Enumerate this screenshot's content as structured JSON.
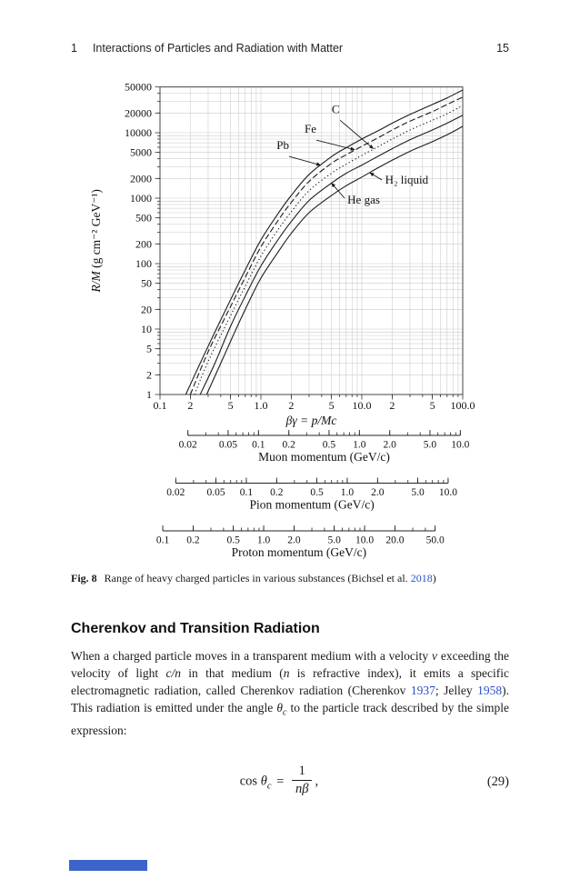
{
  "colors": {
    "link": "#2b50c8",
    "footer_bar": "#3d64c8",
    "grid": "#c9c9c9",
    "curve": "#1c1c1c"
  },
  "header": {
    "chapter": "1",
    "title": "Interactions of Particles and Radiation with Matter",
    "page_number": "15"
  },
  "figure": {
    "caption_label": "Fig. 8",
    "caption_body": "Range of heavy charged particles in various substances (Bichsel et al. ",
    "caption_link": "2018",
    "caption_close": ")"
  },
  "section": {
    "title": "Cherenkov and Transition Radiation"
  },
  "paragraph": {
    "s1": "When a charged particle moves in a transparent medium with a velocity ",
    "s2": "v",
    "s3": " exceeding the velocity of light ",
    "s4": "c/n",
    "s5": " in that medium (",
    "s6": "n",
    "s7": " is refractive index), it emits a specific electromagnetic radiation, called Cherenkov radiation (Cherenkov ",
    "link1937": "1937",
    "s8": "; Jelley ",
    "link1958": "1958",
    "s9": "). This radiation is emitted under the angle ",
    "s10": "θ",
    "s11": "c",
    "s12": " to the particle track described by the simple expression:"
  },
  "equation": {
    "cos": "cos ",
    "theta": "θ",
    "sub": "c",
    "equals": " = ",
    "numerator": "1",
    "denominator": "nβ",
    "comma": ",",
    "label": "(29)"
  },
  "chart_data": {
    "type": "line",
    "title": "",
    "xscale": "log",
    "yscale": "log",
    "xlim": [
      0.1,
      100
    ],
    "ylim": [
      1,
      50000
    ],
    "xlabel": "βγ = p/Mc",
    "ylabel_var": "R/M",
    "ylabel_units": " (g cm⁻² GeV⁻¹)",
    "x_ticks": [
      {
        "v": 0.1,
        "label": "0.1"
      },
      {
        "v": 0.2,
        "label": "2"
      },
      {
        "v": 0.5,
        "label": "5"
      },
      {
        "v": 1,
        "label": "1.0"
      },
      {
        "v": 2,
        "label": "2"
      },
      {
        "v": 5,
        "label": "5"
      },
      {
        "v": 10,
        "label": "10.0"
      },
      {
        "v": 20,
        "label": "2"
      },
      {
        "v": 50,
        "label": "5"
      },
      {
        "v": 100,
        "label": "100.0"
      }
    ],
    "y_ticks": [
      {
        "v": 1,
        "label": "1"
      },
      {
        "v": 2,
        "label": "2"
      },
      {
        "v": 5,
        "label": "5"
      },
      {
        "v": 10,
        "label": "10"
      },
      {
        "v": 20,
        "label": "20"
      },
      {
        "v": 50,
        "label": "50"
      },
      {
        "v": 100,
        "label": "100"
      },
      {
        "v": 200,
        "label": "200"
      },
      {
        "v": 500,
        "label": "500"
      },
      {
        "v": 1000,
        "label": "1000"
      },
      {
        "v": 2000,
        "label": "2000"
      },
      {
        "v": 5000,
        "label": "5000"
      },
      {
        "v": 10000,
        "label": "10000"
      },
      {
        "v": 20000,
        "label": "20000"
      },
      {
        "v": 50000,
        "label": "50000"
      }
    ],
    "series": [
      {
        "name": "Pb",
        "dash": "solid",
        "x": [
          0.18,
          0.25,
          0.35,
          0.5,
          0.7,
          1,
          1.5,
          2,
          3,
          5,
          7,
          10,
          15,
          20,
          30,
          50,
          70,
          100
        ],
        "y": [
          1,
          3,
          9,
          28,
          80,
          230,
          600,
          1100,
          2300,
          4300,
          5900,
          8000,
          11000,
          14000,
          19000,
          27000,
          34000,
          45000
        ]
      },
      {
        "name": "Fe",
        "dash": "dash",
        "x": [
          0.2,
          0.3,
          0.5,
          0.7,
          1,
          1.5,
          2,
          3,
          5,
          7,
          10,
          15,
          20,
          30,
          50,
          70,
          100
        ],
        "y": [
          1,
          4.5,
          22,
          62,
          180,
          470,
          860,
          1800,
          3400,
          4600,
          6200,
          8600,
          11000,
          15000,
          21000,
          27000,
          35000
        ]
      },
      {
        "name": "C",
        "dash": "dot",
        "x": [
          0.22,
          0.3,
          0.5,
          0.7,
          1,
          1.5,
          2,
          3,
          5,
          7,
          10,
          15,
          20,
          30,
          50,
          70,
          100
        ],
        "y": [
          1,
          3.2,
          16,
          45,
          130,
          340,
          620,
          1300,
          2400,
          3300,
          4500,
          6300,
          8000,
          11000,
          15500,
          19500,
          26000
        ]
      },
      {
        "name": "He gas",
        "dash": "solid",
        "x": [
          0.25,
          0.35,
          0.5,
          0.7,
          1,
          1.5,
          2,
          3,
          5,
          7,
          10,
          15,
          20,
          30,
          50,
          70,
          100
        ],
        "y": [
          1,
          3,
          11,
          32,
          92,
          240,
          440,
          920,
          1700,
          2400,
          3200,
          4500,
          5700,
          7800,
          11000,
          14000,
          18500
        ]
      },
      {
        "name": "H₂ liquid",
        "dash": "solid",
        "x": [
          0.29,
          0.4,
          0.55,
          0.75,
          1,
          1.5,
          2,
          3,
          5,
          7,
          10,
          15,
          20,
          30,
          50,
          70,
          100
        ],
        "y": [
          1,
          3,
          9,
          25,
          60,
          155,
          290,
          600,
          1100,
          1550,
          2100,
          3000,
          3800,
          5200,
          7300,
          9300,
          12500
        ]
      }
    ],
    "annotations": [
      {
        "text": "C",
        "anchor": "middle",
        "lx": 5.5,
        "ly": 20000,
        "ax": 6.1,
        "ay": 15500,
        "tx": 13,
        "ty": 5700
      },
      {
        "text": "Fe",
        "anchor": "middle",
        "lx": 3.1,
        "ly": 10000,
        "ax": 3.55,
        "ay": 7700,
        "tx": 8.5,
        "ty": 5500
      },
      {
        "text": "Pb",
        "anchor": "middle",
        "lx": 1.65,
        "ly": 5600,
        "ax": 1.9,
        "ay": 4350,
        "tx": 3.9,
        "ty": 3200
      },
      {
        "text": "H₂ liquid",
        "anchor": "start",
        "lx": 17,
        "ly": 1670,
        "ax": 15.8,
        "ay": 1900,
        "tx": 12,
        "ty": 2450
      },
      {
        "text": "He gas",
        "anchor": "start",
        "lx": 7.2,
        "ly": 830,
        "ax": 6.75,
        "ay": 1000,
        "tx": 5,
        "ty": 1700
      }
    ],
    "momentum_scales": [
      {
        "title": "Muon momentum (GeV/c)",
        "mass": 0.1057,
        "min": 0.02,
        "max": 10,
        "ticks": [
          {
            "v": 0.02,
            "label": "0.02"
          },
          {
            "v": 0.05,
            "label": "0.05"
          },
          {
            "v": 0.1,
            "label": "0.1"
          },
          {
            "v": 0.2,
            "label": "0.2"
          },
          {
            "v": 0.5,
            "label": "0.5"
          },
          {
            "v": 1,
            "label": "1.0"
          },
          {
            "v": 2,
            "label": "2.0"
          },
          {
            "v": 5,
            "label": "5.0"
          },
          {
            "v": 10,
            "label": "10.0"
          }
        ]
      },
      {
        "title": "Pion momentum (GeV/c)",
        "mass": 0.1396,
        "min": 0.02,
        "max": 10,
        "ticks": [
          {
            "v": 0.02,
            "label": "0.02"
          },
          {
            "v": 0.05,
            "label": "0.05"
          },
          {
            "v": 0.1,
            "label": "0.1"
          },
          {
            "v": 0.2,
            "label": "0.2"
          },
          {
            "v": 0.5,
            "label": "0.5"
          },
          {
            "v": 1,
            "label": "1.0"
          },
          {
            "v": 2,
            "label": "2.0"
          },
          {
            "v": 5,
            "label": "5.0"
          },
          {
            "v": 10,
            "label": "10.0"
          }
        ]
      },
      {
        "title": "Proton momentum (GeV/c)",
        "mass": 0.9383,
        "min": 0.1,
        "max": 50,
        "ticks": [
          {
            "v": 0.1,
            "label": "0.1"
          },
          {
            "v": 0.2,
            "label": "0.2"
          },
          {
            "v": 0.5,
            "label": "0.5"
          },
          {
            "v": 1,
            "label": "1.0"
          },
          {
            "v": 2,
            "label": "2.0"
          },
          {
            "v": 5,
            "label": "5.0"
          },
          {
            "v": 10,
            "label": "10.0"
          },
          {
            "v": 20,
            "label": "20.0"
          },
          {
            "v": 50,
            "label": "50.0"
          }
        ]
      }
    ]
  }
}
